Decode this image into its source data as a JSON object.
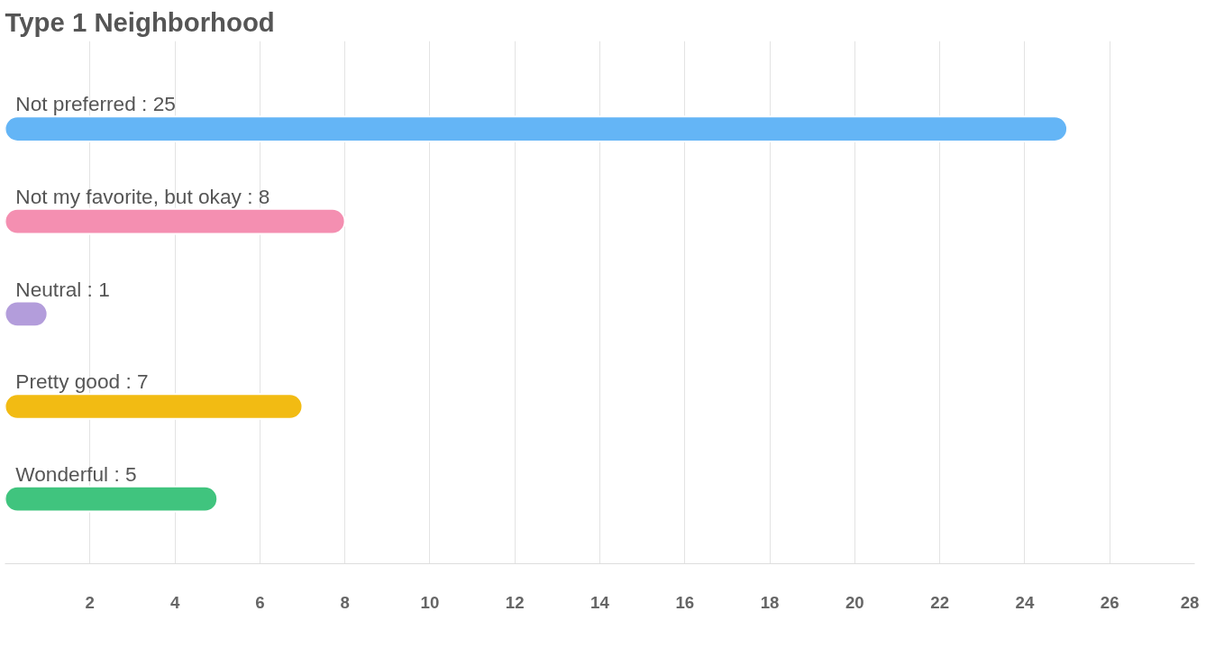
{
  "chart_data": {
    "type": "bar",
    "orientation": "horizontal",
    "title": "Type 1 Neighborhood",
    "categories": [
      "Not preferred : 25",
      "Not my favorite, but okay : 8",
      "Neutral : 1",
      "Pretty good : 7",
      "Wonderful : 5"
    ],
    "values": [
      25,
      8,
      1,
      7,
      5
    ],
    "colors": [
      "#64b5f6",
      "#f48fb1",
      "#b39ddb",
      "#f2bb13",
      "#40c47e"
    ],
    "xlim": [
      0,
      28
    ],
    "xticks": [
      2,
      4,
      6,
      8,
      10,
      12,
      14,
      16,
      18,
      20,
      22,
      24,
      26,
      28
    ],
    "grid": "x"
  }
}
